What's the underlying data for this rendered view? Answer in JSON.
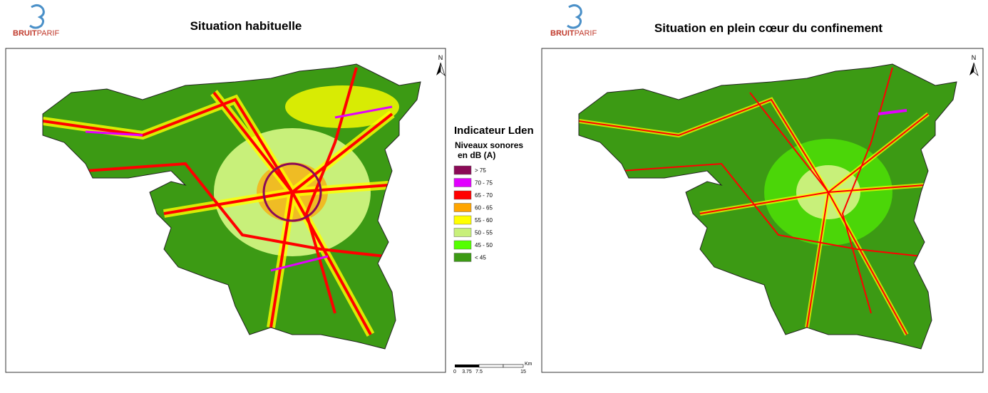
{
  "logo": {
    "part1": "BRUIT",
    "part2": "PARIF"
  },
  "left_map": {
    "title": "Situation habituelle",
    "north": "N"
  },
  "right_map": {
    "title": "Situation en plein cœur du confinement",
    "north": "N"
  },
  "legend": {
    "title": "Indicateur Lden",
    "subtitle_line1": "Niveaux sonores",
    "subtitle_line2": "en dB (A)",
    "items": [
      {
        "label": "> 75",
        "color": "#8b0a57"
      },
      {
        "label": "70 - 75",
        "color": "#e100ff"
      },
      {
        "label": "65 - 70",
        "color": "#ff0000"
      },
      {
        "label": "60 - 65",
        "color": "#ffa500"
      },
      {
        "label": "55 - 60",
        "color": "#ffff00"
      },
      {
        "label": "50 - 55",
        "color": "#c8f07a"
      },
      {
        "label": "45 - 50",
        "color": "#55ff00"
      },
      {
        "label": "< 45",
        "color": "#3c9a14"
      }
    ]
  },
  "scale_bar": {
    "labels": [
      "0",
      "3.75",
      "7.5",
      "15"
    ],
    "unit": "Km"
  }
}
